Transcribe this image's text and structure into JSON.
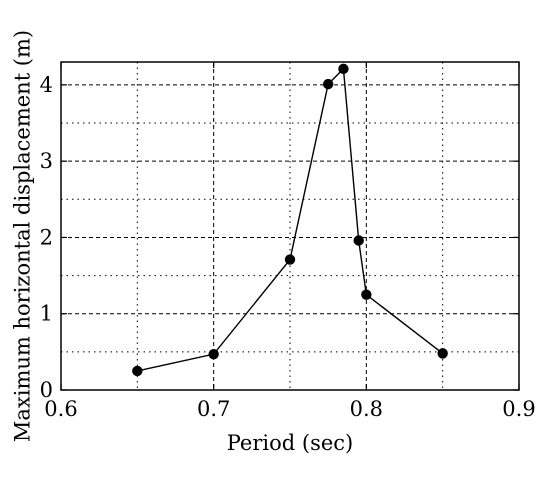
{
  "chart_data": {
    "type": "line",
    "title": "",
    "xlabel": "Period (sec)",
    "ylabel": "Maximum horizontal displacement (m)",
    "xlim": [
      0.6,
      0.9
    ],
    "ylim": [
      0,
      4.3
    ],
    "x_ticks": [
      0.6,
      0.7,
      0.8,
      0.9
    ],
    "x_tick_labels": [
      "0.6",
      "0.7",
      "0.8",
      "0.9"
    ],
    "y_ticks": [
      0,
      1,
      2,
      3,
      4
    ],
    "y_tick_labels": [
      "0",
      "1",
      "2",
      "3",
      "4"
    ],
    "x_minor_grid": [
      0.65,
      0.75,
      0.85
    ],
    "y_minor_grid": [
      0.5,
      1.5,
      2.5,
      3.5
    ],
    "grid": true,
    "series": [
      {
        "x": [
          0.65,
          0.7,
          0.75,
          0.775,
          0.785,
          0.795,
          0.8,
          0.85
        ],
        "y": [
          0.25,
          0.47,
          1.71,
          4.01,
          4.21,
          1.96,
          1.25,
          0.48
        ],
        "color": "#000000",
        "marker": "circle"
      }
    ]
  }
}
